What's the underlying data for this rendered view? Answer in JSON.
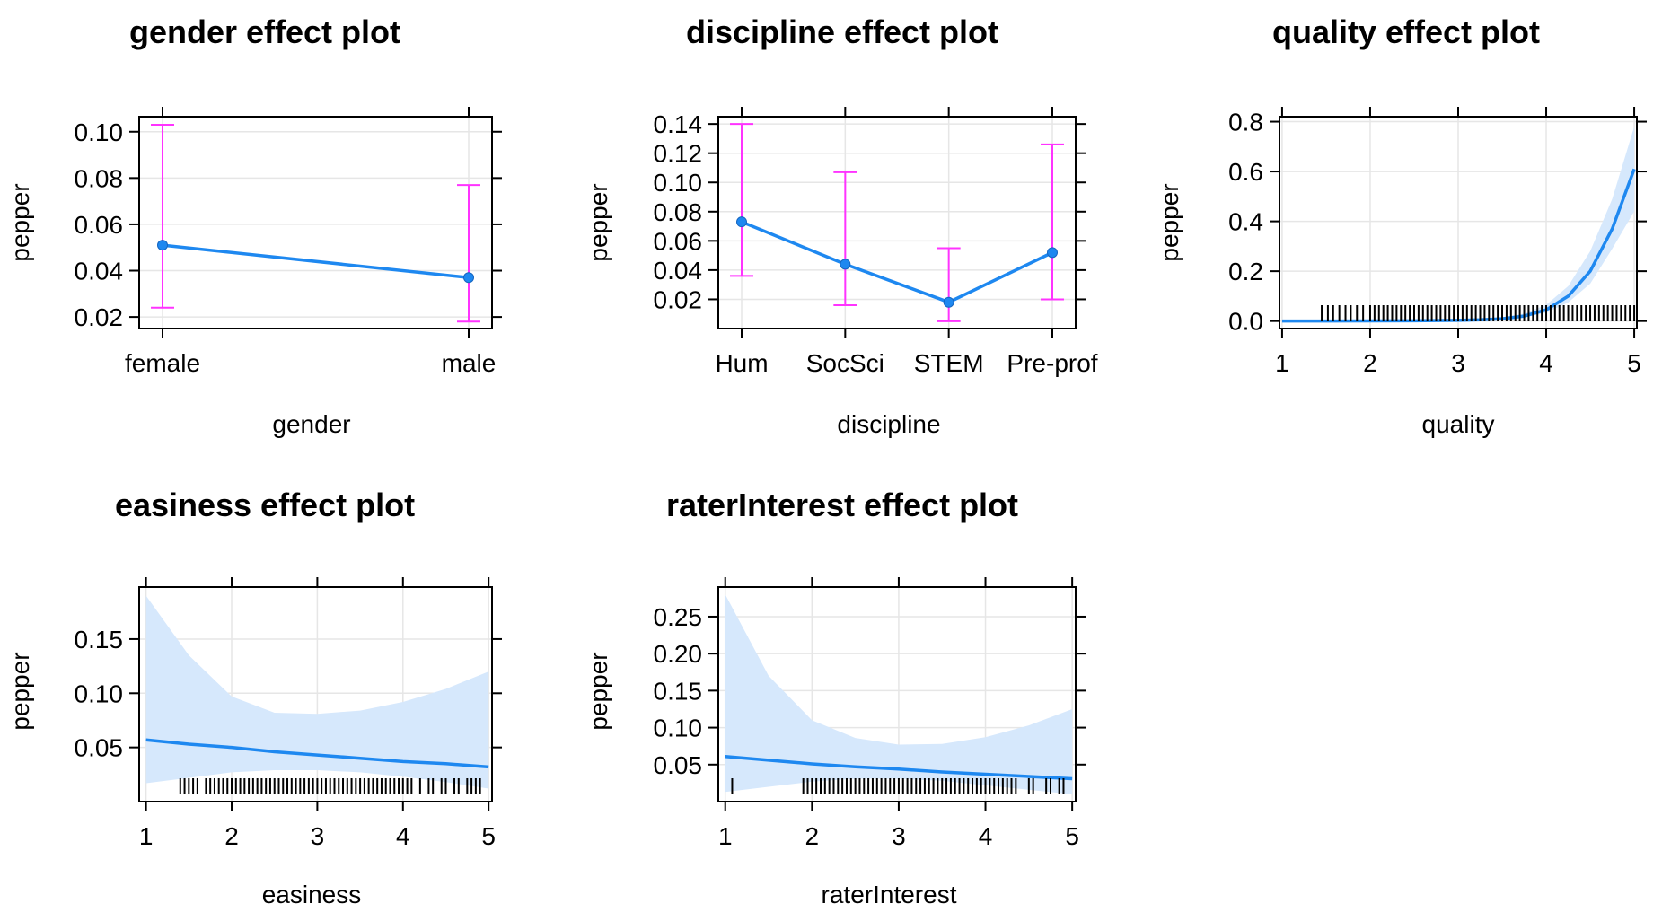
{
  "chart_data": [
    {
      "type": "line",
      "title": "gender effect plot",
      "xlabel": "gender",
      "ylabel": "pepper",
      "x_kind": "categorical",
      "categories": [
        "female",
        "male"
      ],
      "values": [
        0.051,
        0.037
      ],
      "lower": [
        0.024,
        0.018
      ],
      "upper": [
        0.103,
        0.077
      ],
      "ylim": [
        0.015,
        0.1065
      ],
      "yticks": [
        0.02,
        0.04,
        0.06,
        0.08,
        0.1
      ],
      "ytick_labels": [
        "0.02",
        "0.04",
        "0.06",
        "0.08",
        "0.10"
      ],
      "grid": true
    },
    {
      "type": "line",
      "title": "discipline effect plot",
      "xlabel": "discipline",
      "ylabel": "pepper",
      "x_kind": "categorical",
      "categories": [
        "Hum",
        "SocSci",
        "STEM",
        "Pre-prof"
      ],
      "values": [
        0.073,
        0.044,
        0.018,
        0.052
      ],
      "lower": [
        0.036,
        0.016,
        0.005,
        0.02
      ],
      "upper": [
        0.14,
        0.107,
        0.055,
        0.126
      ],
      "ylim": [
        0.0,
        0.145
      ],
      "yticks": [
        0.02,
        0.04,
        0.06,
        0.08,
        0.1,
        0.12,
        0.14
      ],
      "ytick_labels": [
        "0.02",
        "0.04",
        "0.06",
        "0.08",
        "0.10",
        "0.12",
        "0.14"
      ],
      "grid": true
    },
    {
      "type": "area",
      "title": "quality effect plot",
      "xlabel": "quality",
      "ylabel": "pepper",
      "x_kind": "numeric",
      "xlim": [
        0.97,
        5.03
      ],
      "xticks": [
        1,
        2,
        3,
        4,
        5
      ],
      "xtick_labels": [
        "1",
        "2",
        "3",
        "4",
        "5"
      ],
      "ylim": [
        -0.03,
        0.82
      ],
      "yticks": [
        0.0,
        0.2,
        0.4,
        0.6,
        0.8
      ],
      "ytick_labels": [
        "0.0",
        "0.2",
        "0.4",
        "0.6",
        "0.8"
      ],
      "x": [
        1.0,
        1.5,
        2.0,
        2.5,
        3.0,
        3.25,
        3.5,
        3.75,
        4.0,
        4.25,
        4.5,
        4.75,
        5.0
      ],
      "values": [
        0.0,
        0.0,
        0.0005,
        0.001,
        0.003,
        0.005,
        0.009,
        0.02,
        0.045,
        0.1,
        0.2,
        0.37,
        0.61
      ],
      "lower": [
        0.0,
        0.0,
        0.0002,
        0.0005,
        0.002,
        0.003,
        0.006,
        0.014,
        0.033,
        0.075,
        0.15,
        0.29,
        0.44
      ],
      "upper": [
        0.0,
        0.0,
        0.0015,
        0.003,
        0.006,
        0.009,
        0.015,
        0.03,
        0.065,
        0.14,
        0.28,
        0.49,
        0.78
      ],
      "rug": [
        1.45,
        1.52,
        1.58,
        1.65,
        1.72,
        1.78,
        1.85,
        1.92,
        2.0,
        2.05,
        2.1,
        2.15,
        2.2,
        2.25,
        2.3,
        2.35,
        2.4,
        2.45,
        2.5,
        2.55,
        2.6,
        2.65,
        2.7,
        2.75,
        2.8,
        2.85,
        2.9,
        2.95,
        3.0,
        3.05,
        3.1,
        3.15,
        3.2,
        3.25,
        3.3,
        3.35,
        3.4,
        3.45,
        3.5,
        3.55,
        3.6,
        3.65,
        3.7,
        3.75,
        3.8,
        3.85,
        3.9,
        3.95,
        4.0,
        4.05,
        4.1,
        4.15,
        4.2,
        4.25,
        4.3,
        4.35,
        4.4,
        4.45,
        4.5,
        4.55,
        4.6,
        4.65,
        4.7,
        4.75,
        4.8,
        4.85,
        4.9,
        4.95,
        5.0
      ],
      "grid": true
    },
    {
      "type": "area",
      "title": "easiness effect plot",
      "xlabel": "easiness",
      "ylabel": "pepper",
      "x_kind": "numeric",
      "xlim": [
        0.92,
        5.04
      ],
      "xticks": [
        1,
        2,
        3,
        4,
        5
      ],
      "xtick_labels": [
        "1",
        "2",
        "3",
        "4",
        "5"
      ],
      "ylim": [
        0.0,
        0.198
      ],
      "yticks": [
        0.05,
        0.1,
        0.15
      ],
      "ytick_labels": [
        "0.05",
        "0.10",
        "0.15"
      ],
      "x": [
        1.0,
        1.5,
        2.0,
        2.5,
        3.0,
        3.5,
        4.0,
        4.5,
        5.0
      ],
      "values": [
        0.057,
        0.053,
        0.05,
        0.046,
        0.043,
        0.04,
        0.037,
        0.035,
        0.032
      ],
      "lower": [
        0.017,
        0.022,
        0.027,
        0.029,
        0.029,
        0.027,
        0.023,
        0.018,
        0.012
      ],
      "upper": [
        0.19,
        0.135,
        0.097,
        0.082,
        0.081,
        0.084,
        0.092,
        0.104,
        0.12
      ],
      "rug": [
        1.4,
        1.45,
        1.5,
        1.55,
        1.6,
        1.7,
        1.75,
        1.8,
        1.85,
        1.9,
        1.95,
        2.0,
        2.05,
        2.1,
        2.15,
        2.2,
        2.25,
        2.3,
        2.35,
        2.4,
        2.45,
        2.5,
        2.55,
        2.6,
        2.65,
        2.7,
        2.75,
        2.8,
        2.85,
        2.9,
        2.95,
        3.0,
        3.05,
        3.1,
        3.15,
        3.2,
        3.25,
        3.3,
        3.35,
        3.4,
        3.45,
        3.5,
        3.55,
        3.6,
        3.65,
        3.7,
        3.75,
        3.8,
        3.85,
        3.9,
        3.95,
        4.0,
        4.05,
        4.1,
        4.2,
        4.3,
        4.35,
        4.45,
        4.5,
        4.6,
        4.65,
        4.75,
        4.8,
        4.85,
        4.9
      ],
      "grid": true
    },
    {
      "type": "area",
      "title": "raterInterest effect plot",
      "xlabel": "raterInterest",
      "ylabel": "pepper",
      "x_kind": "numeric",
      "xlim": [
        0.92,
        5.04
      ],
      "xticks": [
        1,
        2,
        3,
        4,
        5
      ],
      "xtick_labels": [
        "1",
        "2",
        "3",
        "4",
        "5"
      ],
      "ylim": [
        0.0,
        0.29
      ],
      "yticks": [
        0.05,
        0.1,
        0.15,
        0.2,
        0.25
      ],
      "ytick_labels": [
        "0.05",
        "0.10",
        "0.15",
        "0.20",
        "0.25"
      ],
      "x": [
        1.0,
        1.5,
        2.0,
        2.5,
        3.0,
        3.5,
        4.0,
        4.5,
        5.0
      ],
      "values": [
        0.061,
        0.056,
        0.051,
        0.047,
        0.044,
        0.04,
        0.037,
        0.034,
        0.031
      ],
      "lower": [
        0.013,
        0.02,
        0.027,
        0.031,
        0.031,
        0.028,
        0.022,
        0.016,
        0.01
      ],
      "upper": [
        0.28,
        0.17,
        0.11,
        0.086,
        0.077,
        0.078,
        0.087,
        0.103,
        0.125
      ],
      "rug": [
        1.08,
        1.9,
        1.95,
        2.0,
        2.05,
        2.1,
        2.15,
        2.2,
        2.25,
        2.3,
        2.35,
        2.4,
        2.45,
        2.5,
        2.55,
        2.6,
        2.65,
        2.7,
        2.75,
        2.8,
        2.85,
        2.9,
        2.95,
        3.0,
        3.05,
        3.1,
        3.15,
        3.2,
        3.25,
        3.3,
        3.35,
        3.4,
        3.45,
        3.5,
        3.55,
        3.6,
        3.65,
        3.7,
        3.75,
        3.8,
        3.85,
        3.9,
        3.95,
        4.0,
        4.05,
        4.1,
        4.15,
        4.2,
        4.25,
        4.3,
        4.35,
        4.5,
        4.55,
        4.7,
        4.75,
        4.85,
        4.9
      ],
      "grid": true
    }
  ],
  "colors": {
    "line": "#1e88f0",
    "band": "#d6e8fc",
    "errorbar": "#ff33ff",
    "grid": "#e6e6e6",
    "rug": "#000000",
    "frame": "#000000"
  }
}
